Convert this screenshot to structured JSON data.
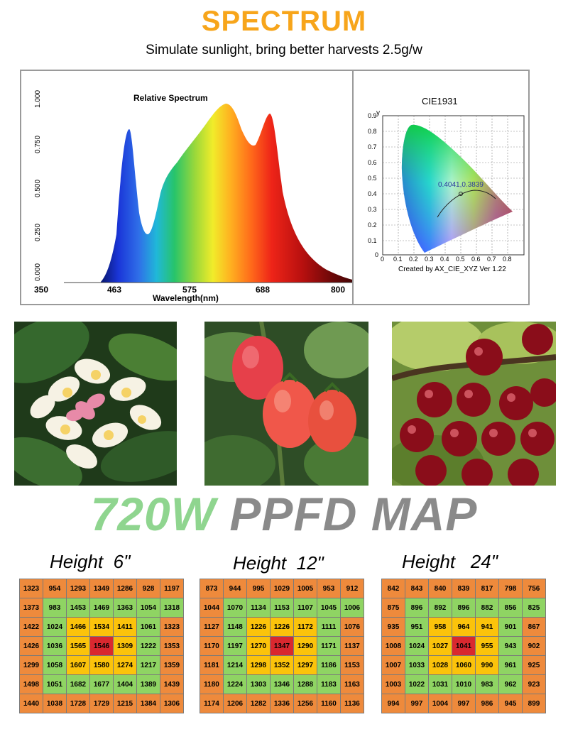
{
  "header": {
    "title": "SPECTRUM",
    "subtitle": "Simulate sunlight, bring better harvests 2.5g/w",
    "title_color": "#f7a51b"
  },
  "spectrum_chart": {
    "title": "Relative Spectrum",
    "xlabel": "Wavelength(nm)",
    "x_ticks": [
      "350",
      "463",
      "575",
      "688",
      "800"
    ],
    "y_ticks": [
      "0.000",
      "0.250",
      "0.500",
      "0.750",
      "1.000"
    ]
  },
  "cie_chart": {
    "title": "CIE1931",
    "point_label": "0.4041,0.3839",
    "footer": "Created by AX_CIE_XYZ Ver 1.22",
    "x_axis": "x",
    "y_axis": "y",
    "x_ticks": [
      "0",
      "0.1",
      "0.2",
      "0.3",
      "0.4",
      "0.5",
      "0.6",
      "0.7",
      "0.8"
    ],
    "y_ticks": [
      "0",
      "0.1",
      "0.2",
      "0.3",
      "0.4",
      "0.5",
      "0.6",
      "0.7",
      "0.8",
      "0.9"
    ]
  },
  "photos": [
    "plumeria-flowers",
    "tomatoes",
    "cherries"
  ],
  "map_title": {
    "part1": "720W",
    "part2": "PPFD MAP"
  },
  "maps": [
    {
      "label": "Height  6\"",
      "rows": [
        [
          "1323",
          "954",
          "1293",
          "1349",
          "1286",
          "928",
          "1197"
        ],
        [
          "1373",
          "983",
          "1453",
          "1469",
          "1363",
          "1054",
          "1318"
        ],
        [
          "1422",
          "1024",
          "1466",
          "1534",
          "1411",
          "1061",
          "1323"
        ],
        [
          "1426",
          "1036",
          "1565",
          "1546",
          "1309",
          "1222",
          "1353"
        ],
        [
          "1299",
          "1058",
          "1607",
          "1580",
          "1274",
          "1217",
          "1359"
        ],
        [
          "1498",
          "1051",
          "1682",
          "1677",
          "1404",
          "1389",
          "1439"
        ],
        [
          "1440",
          "1038",
          "1728",
          "1729",
          "1215",
          "1384",
          "1306"
        ]
      ]
    },
    {
      "label": "Height  12\"",
      "rows": [
        [
          "873",
          "944",
          "995",
          "1029",
          "1005",
          "953",
          "912"
        ],
        [
          "1044",
          "1070",
          "1134",
          "1153",
          "1107",
          "1045",
          "1006"
        ],
        [
          "1127",
          "1148",
          "1226",
          "1226",
          "1172",
          "1111",
          "1076"
        ],
        [
          "1170",
          "1197",
          "1270",
          "1347",
          "1290",
          "1171",
          "1137"
        ],
        [
          "1181",
          "1214",
          "1298",
          "1352",
          "1297",
          "1186",
          "1153"
        ],
        [
          "1180",
          "1224",
          "1303",
          "1346",
          "1288",
          "1183",
          "1163"
        ],
        [
          "1174",
          "1206",
          "1282",
          "1336",
          "1256",
          "1160",
          "1136"
        ]
      ]
    },
    {
      "label": "Height   24\"",
      "rows": [
        [
          "842",
          "843",
          "840",
          "839",
          "817",
          "798",
          "756"
        ],
        [
          "875",
          "896",
          "892",
          "896",
          "882",
          "856",
          "825"
        ],
        [
          "935",
          "951",
          "958",
          "964",
          "941",
          "901",
          "867"
        ],
        [
          "1008",
          "1024",
          "1027",
          "1041",
          "955",
          "943",
          "902"
        ],
        [
          "1007",
          "1033",
          "1028",
          "1060",
          "990",
          "961",
          "925"
        ],
        [
          "1003",
          "1022",
          "1031",
          "1010",
          "983",
          "962",
          "923"
        ],
        [
          "994",
          "997",
          "1004",
          "997",
          "986",
          "945",
          "899"
        ]
      ]
    }
  ],
  "cell_colors": {
    "orange": "#ee8a3c",
    "green": "#8fd463",
    "yellow": "#fbc30b",
    "red": "#d9282f"
  }
}
